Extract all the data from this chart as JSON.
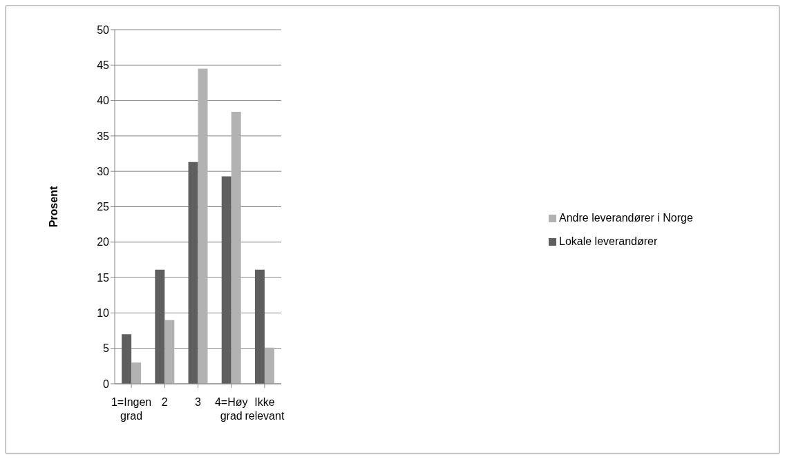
{
  "chart_data": {
    "type": "bar",
    "ylabel": "Prosent",
    "categories": [
      "1=Ingen grad",
      "2",
      "3",
      "4=Høy grad",
      "Ikke relevant"
    ],
    "series": [
      {
        "name": "Lokale leverandører",
        "color": "#5f5f5f",
        "values": [
          7.0,
          16.1,
          31.3,
          29.3,
          16.1
        ]
      },
      {
        "name": "Andre leverandører i Norge",
        "color": "#b2b2b2",
        "values": [
          3.0,
          9.0,
          44.5,
          38.4,
          5.1
        ]
      }
    ],
    "ylim": [
      0,
      50
    ],
    "yticks": [
      0,
      5,
      10,
      15,
      20,
      25,
      30,
      35,
      40,
      45,
      50
    ],
    "grid": "y",
    "legend": "right"
  }
}
